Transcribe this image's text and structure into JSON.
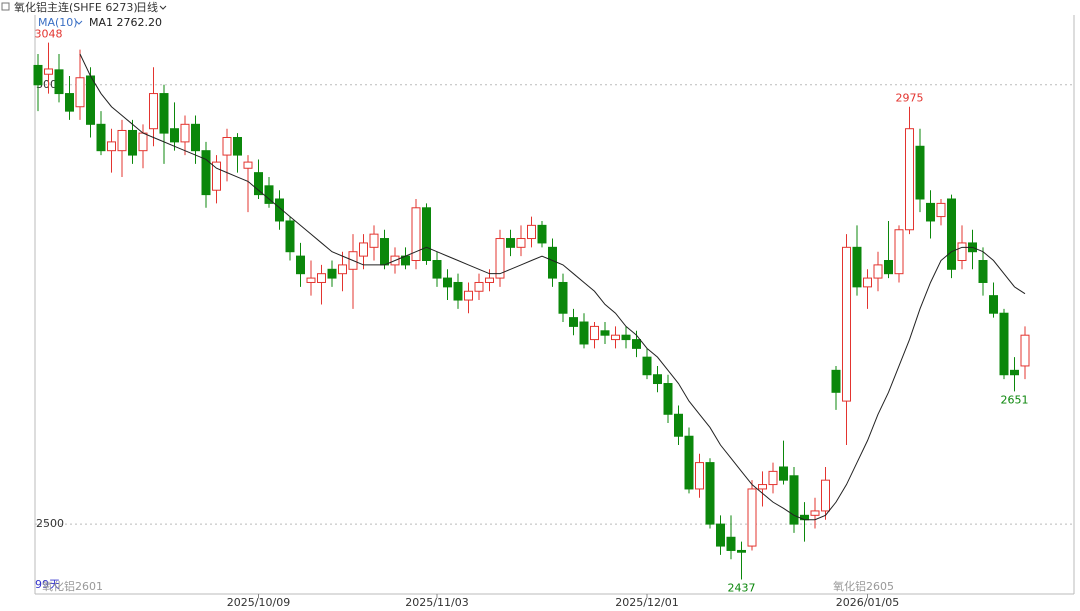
{
  "header": {
    "title": "氧化铝主连(SHFE 6273)",
    "period": "日线"
  },
  "chart_data": {
    "type": "candlestick",
    "indicator": "MA(10)",
    "ma_label": "MA1 2762.20",
    "categories": [
      null,
      null,
      null,
      null,
      null,
      null,
      null,
      null,
      null,
      null,
      null,
      null,
      null,
      null,
      null,
      null,
      null,
      null,
      null,
      null,
      null,
      "2025/10/09",
      null,
      null,
      null,
      null,
      null,
      null,
      null,
      null,
      null,
      null,
      null,
      null,
      null,
      null,
      null,
      null,
      "2025/11/03",
      null,
      null,
      null,
      null,
      null,
      null,
      null,
      null,
      null,
      null,
      null,
      null,
      null,
      null,
      null,
      null,
      null,
      null,
      null,
      "2025/12/01",
      null,
      null,
      null,
      null,
      null,
      null,
      null,
      null,
      null,
      null,
      null,
      null,
      null,
      null,
      null,
      null,
      null,
      null,
      null,
      null,
      "2026/01/05",
      null,
      null,
      null,
      null,
      null,
      null,
      null,
      null,
      null,
      null,
      null,
      null,
      null,
      null,
      null
    ],
    "open": [
      3022,
      3012,
      3017,
      2990,
      2975,
      3010,
      2955,
      2925,
      2925,
      2948,
      2925,
      2950,
      2990,
      2950,
      2935,
      2955,
      2925,
      2880,
      2920,
      2940,
      2905,
      2900,
      2885,
      2870,
      2845,
      2805,
      2775,
      2775,
      2790,
      2785,
      2790,
      2805,
      2815,
      2825,
      2795,
      2805,
      2800,
      2860,
      2800,
      2780,
      2775,
      2755,
      2765,
      2775,
      2780,
      2825,
      2815,
      2825,
      2840,
      2815,
      2775,
      2735,
      2730,
      2710,
      2720,
      2710,
      2715,
      2710,
      2690,
      2670,
      2660,
      2625,
      2600,
      2540,
      2570,
      2500,
      2485,
      2470,
      2475,
      2540,
      2545,
      2565,
      2555,
      2510,
      2510,
      2515,
      2675,
      2640,
      2815,
      2770,
      2780,
      2800,
      2785,
      2835,
      2930,
      2865,
      2850,
      2870,
      2800,
      2820,
      2800,
      2760,
      2740,
      2675,
      2680
    ],
    "high": [
      3035,
      3048,
      3035,
      3010,
      3040,
      3020,
      2970,
      2950,
      2960,
      2960,
      2955,
      3020,
      3000,
      2980,
      2965,
      2965,
      2935,
      2920,
      2950,
      2945,
      2920,
      2915,
      2895,
      2880,
      2850,
      2820,
      2800,
      2795,
      2800,
      2810,
      2830,
      2830,
      2840,
      2835,
      2815,
      2815,
      2870,
      2865,
      2810,
      2790,
      2785,
      2775,
      2785,
      2790,
      2835,
      2835,
      2840,
      2850,
      2845,
      2825,
      2785,
      2745,
      2740,
      2730,
      2730,
      2725,
      2725,
      2720,
      2700,
      2680,
      2670,
      2635,
      2610,
      2580,
      2575,
      2510,
      2510,
      2480,
      2550,
      2560,
      2570,
      2595,
      2565,
      2525,
      2530,
      2565,
      2680,
      2830,
      2840,
      2790,
      2810,
      2845,
      2840,
      2975,
      2950,
      2880,
      2870,
      2875,
      2840,
      2835,
      2815,
      2775,
      2745,
      2690,
      2725
    ],
    "low": [
      2970,
      2990,
      2980,
      2960,
      2960,
      2940,
      2920,
      2900,
      2895,
      2910,
      2905,
      2930,
      2910,
      2925,
      2920,
      2910,
      2860,
      2865,
      2890,
      2900,
      2855,
      2870,
      2860,
      2835,
      2800,
      2770,
      2760,
      2750,
      2770,
      2765,
      2745,
      2790,
      2800,
      2790,
      2785,
      2790,
      2790,
      2795,
      2770,
      2755,
      2745,
      2740,
      2755,
      2765,
      2770,
      2805,
      2805,
      2815,
      2815,
      2770,
      2730,
      2715,
      2700,
      2700,
      2705,
      2700,
      2700,
      2690,
      2665,
      2650,
      2615,
      2590,
      2535,
      2530,
      2495,
      2465,
      2460,
      2437,
      2470,
      2520,
      2535,
      2545,
      2490,
      2480,
      2495,
      2505,
      2630,
      2590,
      2760,
      2745,
      2765,
      2780,
      2775,
      2830,
      2855,
      2825,
      2840,
      2780,
      2790,
      2790,
      2760,
      2735,
      2665,
      2651,
      2665
    ],
    "close": [
      3000,
      3018,
      2990,
      2970,
      3008,
      2955,
      2925,
      2935,
      2948,
      2920,
      2945,
      2990,
      2945,
      2935,
      2955,
      2925,
      2875,
      2912,
      2940,
      2920,
      2912,
      2875,
      2865,
      2845,
      2810,
      2785,
      2780,
      2785,
      2780,
      2795,
      2810,
      2820,
      2830,
      2795,
      2805,
      2795,
      2860,
      2800,
      2780,
      2770,
      2755,
      2765,
      2775,
      2780,
      2825,
      2815,
      2825,
      2840,
      2820,
      2780,
      2740,
      2725,
      2705,
      2725,
      2715,
      2715,
      2710,
      2700,
      2670,
      2660,
      2625,
      2600,
      2540,
      2570,
      2500,
      2475,
      2470,
      2468,
      2540,
      2545,
      2560,
      2550,
      2500,
      2505,
      2515,
      2550,
      2650,
      2815,
      2770,
      2780,
      2795,
      2785,
      2835,
      2950,
      2870,
      2845,
      2865,
      2790,
      2820,
      2810,
      2775,
      2740,
      2670,
      2670,
      2715
    ],
    "ma": [
      null,
      null,
      null,
      null,
      3035,
      3010,
      2990,
      2975,
      2965,
      2955,
      2945,
      2940,
      2935,
      2930,
      2925,
      2920,
      2915,
      2905,
      2900,
      2895,
      2890,
      2880,
      2870,
      2860,
      2850,
      2840,
      2830,
      2820,
      2810,
      2805,
      2800,
      2795,
      2795,
      2795,
      2800,
      2805,
      2810,
      2815,
      2810,
      2805,
      2800,
      2795,
      2790,
      2785,
      2785,
      2790,
      2795,
      2800,
      2805,
      2800,
      2795,
      2785,
      2775,
      2765,
      2750,
      2740,
      2725,
      2715,
      2700,
      2690,
      2675,
      2660,
      2640,
      2625,
      2610,
      2590,
      2575,
      2560,
      2545,
      2535,
      2525,
      2518,
      2510,
      2505,
      2505,
      2510,
      2525,
      2545,
      2570,
      2595,
      2625,
      2650,
      2680,
      2710,
      2745,
      2775,
      2800,
      2810,
      2815,
      2815,
      2810,
      2800,
      2785,
      2770,
      2762.2
    ],
    "ylim": [
      2425,
      3076
    ],
    "yticks": [
      2500,
      3000
    ],
    "grid": true,
    "up_color": "#e3342f",
    "down_color": "#0b870b",
    "ma_color": "#222222",
    "indicator_color": "#3a6fc4"
  },
  "footer": {
    "days": "99天",
    "contract_left": "氧化铝2601",
    "contract_right": "氧化铝2605"
  }
}
